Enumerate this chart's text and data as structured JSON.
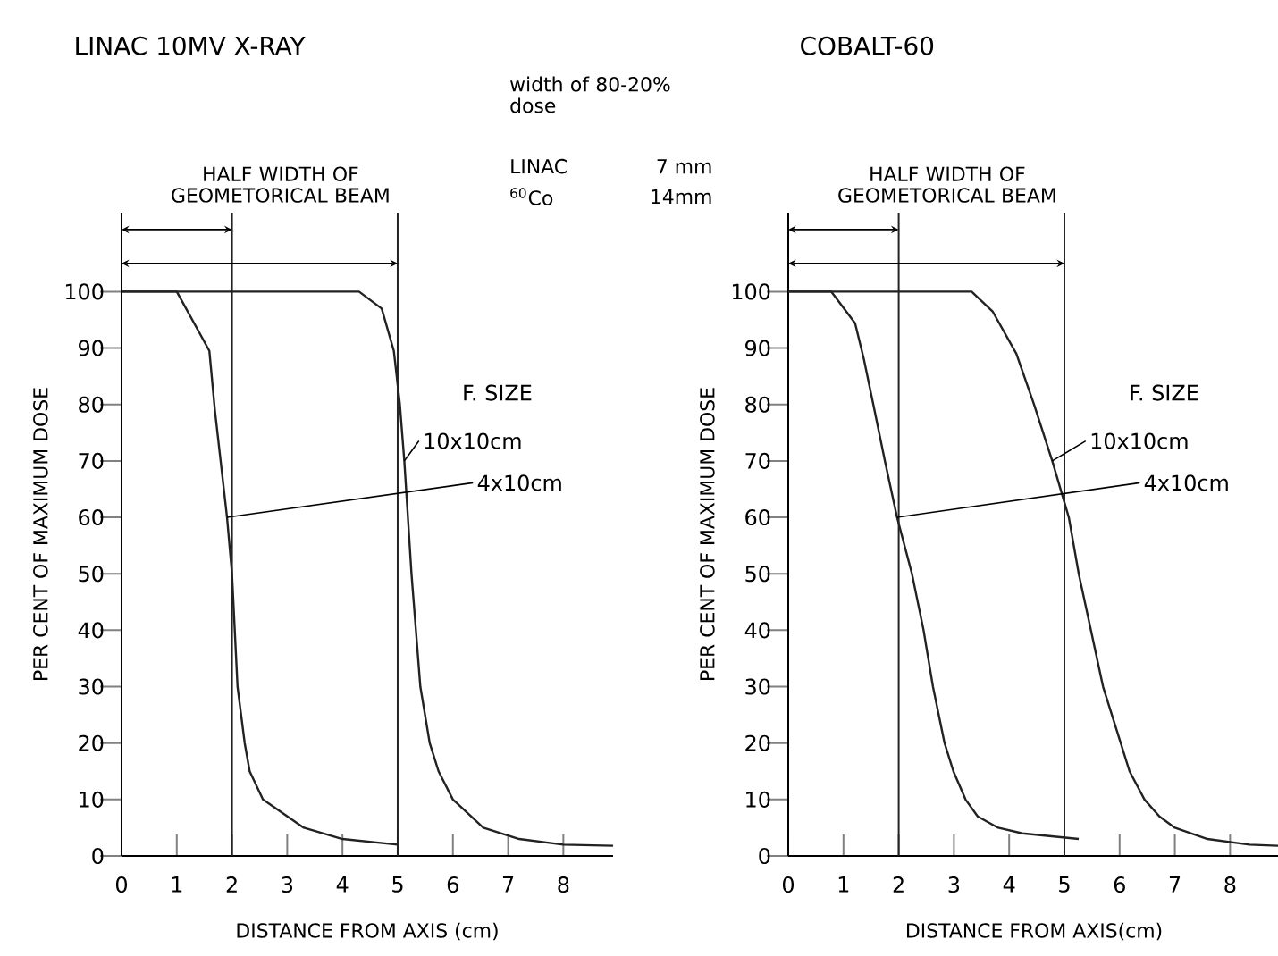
{
  "chart_data": [
    {
      "type": "line",
      "title": "LINAC 10MV X-RAY",
      "xlabel": "DISTANCE FROM AXIS (cm)",
      "ylabel": "PER CENT OF MAXIMUM DOSE",
      "legend_title": "F. SIZE",
      "color": "#222222",
      "line_style": "solid",
      "marker": "none",
      "xlim": [
        0,
        8.9
      ],
      "ylim": [
        0,
        114
      ],
      "xticks": [
        0,
        1,
        2,
        3,
        4,
        5,
        6,
        7,
        8
      ],
      "yticks": [
        0,
        10,
        20,
        30,
        40,
        50,
        60,
        70,
        80,
        90,
        100
      ],
      "ref_lines": [
        {
          "axis": "x",
          "value": 2
        },
        {
          "axis": "x",
          "value": 5
        }
      ],
      "annotations": [
        "HALF WIDTH OF GEOMETORICAL BEAM",
        "width of 80-20% dose",
        "LINAC",
        "7 mm",
        "$^{60}$Co",
        "14mm"
      ],
      "series": [
        {
          "name": "10x10cm",
          "color": "#222222",
          "x": [
            0,
            1,
            2,
            3,
            4,
            4.3,
            4.71,
            4.93,
            5.04,
            5.12,
            5.25,
            5.41,
            5.58,
            5.74,
            6.0,
            6.55,
            7.2,
            8.0,
            8.9
          ],
          "values": [
            100,
            100,
            100,
            100,
            100,
            100,
            97,
            89.5,
            80,
            70,
            50,
            30,
            20,
            15,
            10,
            5,
            3,
            2,
            1.8
          ]
        },
        {
          "name": "4x10cm",
          "color": "#222222",
          "x": [
            0,
            0.5,
            1.0,
            1.59,
            1.69,
            1.91,
            2.0,
            2.1,
            2.23,
            2.32,
            2.56,
            3.3,
            4.0,
            5.0
          ],
          "values": [
            100,
            100,
            100,
            89.5,
            79,
            60,
            50,
            30,
            20,
            15,
            10,
            5,
            3,
            2
          ]
        }
      ]
    },
    {
      "type": "line",
      "title": "COBALT-60",
      "xlabel": "DISTANCE FROM AXIS(cm)",
      "ylabel": "PER CENT OF MAXIMUM DOSE",
      "legend_title": "F. SIZE",
      "color": "#222222",
      "line_style": "solid",
      "marker": "none",
      "xlim": [
        0,
        8.9
      ],
      "ylim": [
        0,
        114
      ],
      "xticks": [
        0,
        1,
        2,
        3,
        4,
        5,
        6,
        7,
        8
      ],
      "yticks": [
        0,
        10,
        20,
        30,
        40,
        50,
        60,
        70,
        80,
        90,
        100
      ],
      "ref_lines": [
        {
          "axis": "x",
          "value": 2
        },
        {
          "axis": "x",
          "value": 5
        }
      ],
      "annotations": [
        "HALF WIDTH OF GEOMETORICAL BEAM"
      ],
      "series": [
        {
          "name": "10x10cm",
          "color": "#222222",
          "x": [
            0,
            1,
            2,
            3,
            3.32,
            3.7,
            4.13,
            4.45,
            4.78,
            5.08,
            5.26,
            5.48,
            5.7,
            6.02,
            6.18,
            6.45,
            6.72,
            7.0,
            7.59,
            8.35,
            8.89
          ],
          "values": [
            100,
            100,
            100,
            100,
            100,
            96.5,
            89,
            80,
            70,
            60,
            50,
            40,
            30,
            20,
            15,
            10,
            7,
            5,
            3,
            2,
            1.8
          ]
        },
        {
          "name": "4x10cm",
          "color": "#222222",
          "x": [
            0,
            0.78,
            1.21,
            1.37,
            1.54,
            1.75,
            1.97,
            2.24,
            2.45,
            2.62,
            2.83,
            2.99,
            3.21,
            3.43,
            3.8,
            4.24,
            5.26
          ],
          "values": [
            100,
            100,
            94.4,
            88,
            80,
            70,
            60,
            50,
            40,
            30,
            20,
            15,
            10,
            7,
            5,
            4,
            3
          ]
        }
      ]
    }
  ]
}
